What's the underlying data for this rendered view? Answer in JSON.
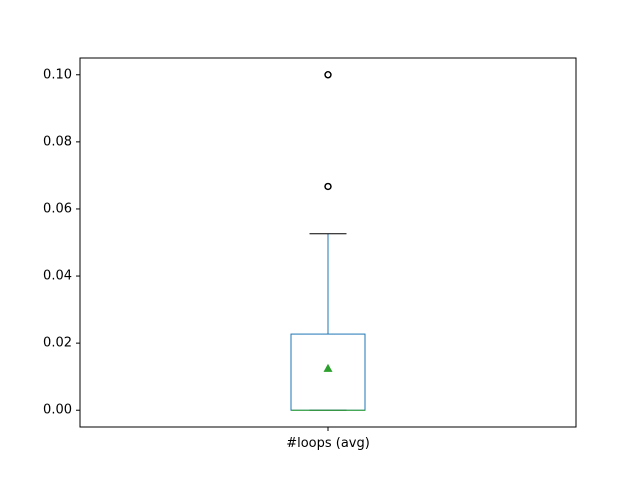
{
  "chart_data": {
    "type": "box",
    "title": "",
    "xlabel": "",
    "ylabel": "",
    "categories": [
      "#loops (avg)"
    ],
    "ylim": [
      -0.005,
      0.105
    ],
    "yticks": [
      0.0,
      0.02,
      0.04,
      0.06,
      0.08,
      0.1
    ],
    "ytick_labels": [
      "0.00",
      "0.02",
      "0.04",
      "0.06",
      "0.08",
      "0.10"
    ],
    "boxes": [
      {
        "name": "#loops (avg)",
        "whisker_low": 0.0,
        "q1": 0.0,
        "median": 0.0,
        "q3": 0.0227,
        "whisker_high": 0.0526,
        "mean": 0.0125,
        "outliers": [
          0.0667,
          0.0667,
          0.1,
          0.1
        ]
      }
    ],
    "grid": false,
    "show_mean": true,
    "colors": {
      "box": "#1f77b4",
      "median": "#2ca02c",
      "mean": "#2ca02c",
      "whisker": "#1f77b4",
      "cap": "#000000",
      "outlier": "#000000"
    }
  }
}
